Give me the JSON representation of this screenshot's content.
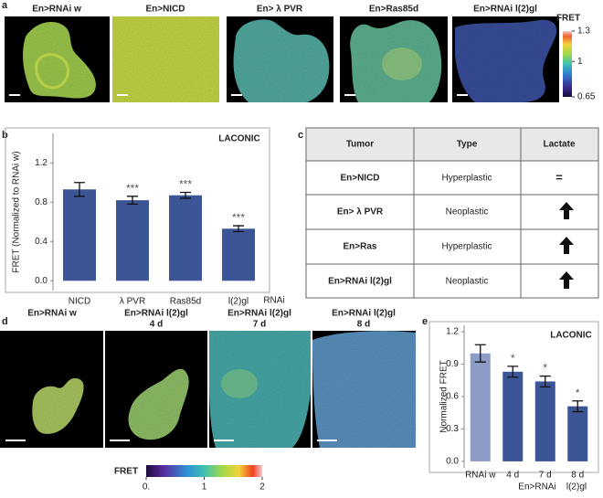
{
  "panel_labels": [
    "a",
    "b",
    "c",
    "d",
    "e"
  ],
  "panel_a": {
    "titles": [
      "En>RNAi w",
      "En>NICD",
      "En> λ PVR",
      "En>Ras85d",
      "En>RNAi l(2)gl"
    ],
    "colorbar": {
      "title": "FRET",
      "ticks": [
        1.3,
        1,
        0.65
      ]
    }
  },
  "table": {
    "headers": [
      "Tumor",
      "Type",
      "Lactate"
    ],
    "rows": [
      [
        "En>NICD",
        "Hyperplastic",
        "="
      ],
      [
        "En> λ PVR",
        "Neoplastic"
      ],
      [
        "En>Ras",
        "Hyperplastic"
      ],
      [
        "En>RNAi l(2)gl",
        "Neoplastic"
      ]
    ]
  },
  "panel_d": {
    "titles": [
      [
        "En>RNAi w"
      ],
      [
        "En>RNAi l(2)gl",
        "4 d"
      ],
      [
        "En>RNAi l(2)gl",
        "7 d"
      ],
      [
        "En>RNAi l(2)gl",
        "8 d"
      ]
    ],
    "colorbar": {
      "title": "FRET",
      "ticks": [
        {
          "value": 0,
          "label": "0."
        },
        1,
        2
      ]
    }
  },
  "chart_data": [
    {
      "type": "bar",
      "title": "LACONIC",
      "y_label": "FRET (Normalized to RNAi w)",
      "categories": [
        "NICD",
        "λ PVR",
        "Ras85d",
        "l(2)gl"
      ],
      "x_annotation": "RNAi",
      "values": [
        0.93,
        0.82,
        0.87,
        0.53
      ],
      "errors": [
        0.07,
        0.04,
        0.03,
        0.03
      ],
      "significance": [
        null,
        "***",
        "***",
        "***"
      ],
      "color": "#3b5597",
      "ylim": [
        -0.1,
        1.5
      ],
      "yticks": [
        {
          "value": 0,
          "label": "0.0"
        },
        0.4,
        0.8,
        1.2
      ]
    },
    {
      "type": "bar",
      "title": "LACONIC",
      "y_label": "Normalized FRET",
      "categories": [
        "RNAi w",
        "4 d",
        "7 d",
        "8 d"
      ],
      "group_labels": [
        "En>RNAi",
        "l(2)gl"
      ],
      "values": [
        1.0,
        0.83,
        0.74,
        0.51
      ],
      "errors": [
        0.08,
        0.05,
        0.05,
        0.05
      ],
      "significance": [
        null,
        "*",
        "*",
        "*"
      ],
      "colors": [
        "#8c9cc6",
        "#3b5597",
        "#3b5597",
        "#3b5597"
      ],
      "ylim": [
        -0.06,
        1.26
      ],
      "yticks": [
        {
          "value": 0,
          "label": "0.0"
        },
        0.3,
        0.6,
        0.9,
        1.2
      ]
    }
  ]
}
